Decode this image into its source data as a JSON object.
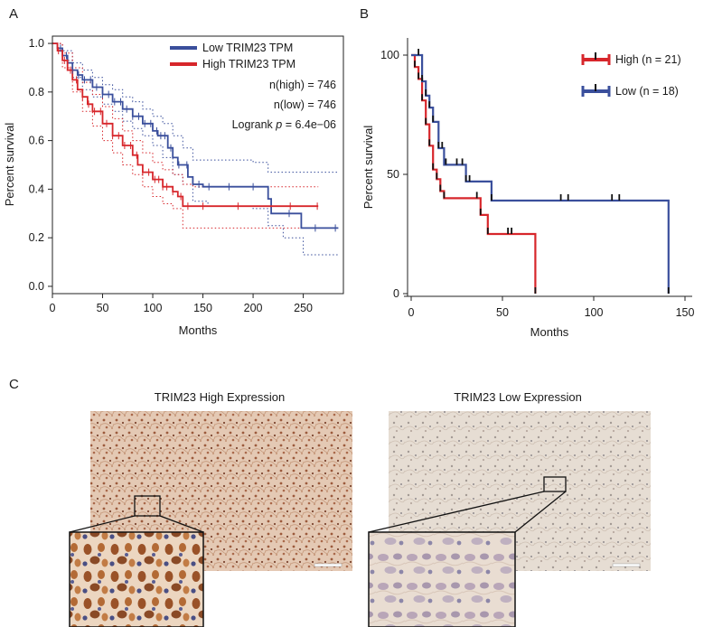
{
  "colors": {
    "blue": "#3a4f9c",
    "red": "#d7262b",
    "tick_black": "#111111",
    "axis": "#222222"
  },
  "panels": {
    "a": {
      "letter": "A"
    },
    "b": {
      "letter": "B"
    },
    "c": {
      "letter": "C",
      "left_title": "TRIM23 High Expression",
      "right_title": "TRIM23 Low Expression"
    }
  },
  "chart_data": [
    {
      "type": "line",
      "panel": "A",
      "xlabel": "Months",
      "ylabel": "Percent survival",
      "xlim": [
        0,
        290
      ],
      "ylim": [
        -0.03,
        1.03
      ],
      "x_ticks": [
        "0",
        "50",
        "100",
        "150",
        "200",
        "250"
      ],
      "x_tick_values": [
        0,
        50,
        100,
        150,
        200,
        250
      ],
      "y_ticks": [
        "0.0",
        "0.2",
        "0.4",
        "0.6",
        "0.8",
        "1.0"
      ],
      "y_tick_values": [
        0,
        0.2,
        0.4,
        0.6,
        0.8,
        1.0
      ],
      "legend_position": "top-right",
      "annotations": {
        "n_high": "n(high) = 746",
        "n_low": "n(low) = 746",
        "logrank_prefix": "Logrank ",
        "logrank_p": "p",
        "logrank_value": " = 6.4e−06"
      },
      "series": [
        {
          "name": "Low TRIM23 TPM",
          "color": "#3a4f9c",
          "steps": [
            [
              0,
              1.0
            ],
            [
              5,
              0.98
            ],
            [
              10,
              0.95
            ],
            [
              15,
              0.92
            ],
            [
              20,
              0.89
            ],
            [
              25,
              0.87
            ],
            [
              30,
              0.85
            ],
            [
              40,
              0.82
            ],
            [
              50,
              0.79
            ],
            [
              60,
              0.76
            ],
            [
              70,
              0.73
            ],
            [
              80,
              0.7
            ],
            [
              90,
              0.67
            ],
            [
              100,
              0.64
            ],
            [
              105,
              0.62
            ],
            [
              115,
              0.57
            ],
            [
              120,
              0.53
            ],
            [
              125,
              0.5
            ],
            [
              135,
              0.45
            ],
            [
              140,
              0.42
            ],
            [
              150,
              0.41
            ],
            [
              160,
              0.41
            ],
            [
              200,
              0.41
            ],
            [
              215,
              0.36
            ],
            [
              218,
              0.3
            ],
            [
              245,
              0.3
            ],
            [
              248,
              0.24
            ],
            [
              285,
              0.24
            ]
          ],
          "ci_upper": [
            [
              0,
              1.0
            ],
            [
              10,
              0.97
            ],
            [
              20,
              0.92
            ],
            [
              30,
              0.89
            ],
            [
              40,
              0.86
            ],
            [
              50,
              0.83
            ],
            [
              60,
              0.81
            ],
            [
              70,
              0.78
            ],
            [
              80,
              0.76
            ],
            [
              90,
              0.73
            ],
            [
              100,
              0.7
            ],
            [
              110,
              0.67
            ],
            [
              120,
              0.62
            ],
            [
              130,
              0.57
            ],
            [
              140,
              0.52
            ],
            [
              155,
              0.52
            ],
            [
              200,
              0.51
            ],
            [
              215,
              0.47
            ],
            [
              250,
              0.47
            ],
            [
              285,
              0.47
            ]
          ],
          "ci_lower": [
            [
              0,
              1.0
            ],
            [
              10,
              0.93
            ],
            [
              20,
              0.86
            ],
            [
              30,
              0.81
            ],
            [
              40,
              0.78
            ],
            [
              50,
              0.75
            ],
            [
              60,
              0.72
            ],
            [
              70,
              0.68
            ],
            [
              80,
              0.65
            ],
            [
              90,
              0.62
            ],
            [
              100,
              0.58
            ],
            [
              110,
              0.53
            ],
            [
              120,
              0.46
            ],
            [
              130,
              0.42
            ],
            [
              140,
              0.35
            ],
            [
              155,
              0.33
            ],
            [
              200,
              0.32
            ],
            [
              215,
              0.25
            ],
            [
              230,
              0.2
            ],
            [
              250,
              0.13
            ],
            [
              285,
              0.13
            ]
          ],
          "censor_x": [
            8,
            14,
            20,
            26,
            32,
            38,
            44,
            50,
            56,
            62,
            68,
            74,
            80,
            86,
            92,
            98,
            104,
            108,
            112,
            118,
            126,
            134,
            146,
            156,
            176,
            200,
            236,
            262,
            282
          ]
        },
        {
          "name": "High TRIM23 TPM",
          "color": "#d7262b",
          "steps": [
            [
              0,
              1.0
            ],
            [
              5,
              0.97
            ],
            [
              10,
              0.93
            ],
            [
              15,
              0.89
            ],
            [
              20,
              0.85
            ],
            [
              25,
              0.81
            ],
            [
              30,
              0.78
            ],
            [
              35,
              0.75
            ],
            [
              40,
              0.72
            ],
            [
              50,
              0.67
            ],
            [
              60,
              0.62
            ],
            [
              70,
              0.58
            ],
            [
              80,
              0.54
            ],
            [
              85,
              0.5
            ],
            [
              90,
              0.47
            ],
            [
              100,
              0.44
            ],
            [
              110,
              0.41
            ],
            [
              120,
              0.39
            ],
            [
              125,
              0.37
            ],
            [
              130,
              0.33
            ],
            [
              135,
              0.33
            ],
            [
              265,
              0.33
            ]
          ],
          "ci_upper": [
            [
              0,
              1.0
            ],
            [
              10,
              0.96
            ],
            [
              20,
              0.9
            ],
            [
              30,
              0.84
            ],
            [
              40,
              0.79
            ],
            [
              50,
              0.74
            ],
            [
              60,
              0.69
            ],
            [
              70,
              0.64
            ],
            [
              80,
              0.6
            ],
            [
              90,
              0.55
            ],
            [
              100,
              0.51
            ],
            [
              110,
              0.48
            ],
            [
              120,
              0.46
            ],
            [
              130,
              0.42
            ],
            [
              140,
              0.41
            ],
            [
              265,
              0.41
            ]
          ],
          "ci_lower": [
            [
              0,
              1.0
            ],
            [
              10,
              0.9
            ],
            [
              20,
              0.8
            ],
            [
              30,
              0.72
            ],
            [
              40,
              0.66
            ],
            [
              50,
              0.6
            ],
            [
              60,
              0.55
            ],
            [
              70,
              0.5
            ],
            [
              80,
              0.46
            ],
            [
              90,
              0.41
            ],
            [
              100,
              0.37
            ],
            [
              110,
              0.34
            ],
            [
              120,
              0.32
            ],
            [
              130,
              0.24
            ],
            [
              265,
              0.24
            ]
          ],
          "censor_x": [
            6,
            12,
            18,
            24,
            30,
            36,
            42,
            48,
            54,
            60,
            66,
            72,
            78,
            84,
            90,
            96,
            102,
            106,
            110,
            114,
            120,
            128,
            135,
            150,
            185,
            237,
            264
          ]
        }
      ]
    },
    {
      "type": "line",
      "panel": "B",
      "xlabel": "Months",
      "ylabel": "Percent survival",
      "xlim": [
        0,
        150
      ],
      "ylim": [
        0,
        100
      ],
      "x_ticks": [
        "0",
        "50",
        "100",
        "150"
      ],
      "x_tick_values": [
        0,
        50,
        100,
        150
      ],
      "y_ticks": [
        "0",
        "50",
        "100"
      ],
      "y_tick_values": [
        0,
        50,
        100
      ],
      "legend_position": "top-right",
      "series": [
        {
          "name": "High (n = 21)",
          "color": "#d7262b",
          "steps": [
            [
              0,
              100
            ],
            [
              2,
              95
            ],
            [
              4,
              90
            ],
            [
              6,
              81
            ],
            [
              8,
              71
            ],
            [
              10,
              62
            ],
            [
              12,
              52
            ],
            [
              14,
              48
            ],
            [
              16,
              43
            ],
            [
              18,
              40
            ],
            [
              36,
              40
            ],
            [
              38,
              33
            ],
            [
              42,
              25
            ],
            [
              68,
              25
            ],
            [
              68,
              0
            ]
          ],
          "censor_x": [
            2,
            4,
            6,
            8,
            10,
            12,
            14,
            16,
            18,
            36,
            38,
            42,
            53,
            55,
            68
          ]
        },
        {
          "name": "Low (n = 18)",
          "color": "#3a4f9c",
          "steps": [
            [
              0,
              100
            ],
            [
              4,
              100
            ],
            [
              6,
              89
            ],
            [
              8,
              83
            ],
            [
              10,
              78
            ],
            [
              12,
              72
            ],
            [
              15,
              61
            ],
            [
              18,
              54
            ],
            [
              28,
              54
            ],
            [
              30,
              47
            ],
            [
              42,
              47
            ],
            [
              44,
              39
            ],
            [
              141,
              39
            ],
            [
              141,
              0
            ]
          ],
          "censor_x": [
            4,
            6,
            8,
            10,
            12,
            15,
            17,
            19,
            25,
            28,
            30,
            32,
            44,
            82,
            86,
            110,
            114,
            141
          ]
        }
      ]
    }
  ]
}
